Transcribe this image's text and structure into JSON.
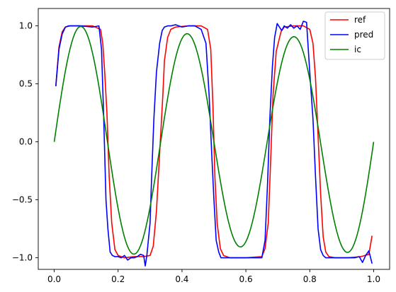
{
  "chart_data": {
    "type": "line",
    "title": "",
    "xlabel": "",
    "ylabel": "",
    "xlim": [
      -0.05,
      1.05
    ],
    "ylim": [
      -1.1,
      1.15
    ],
    "grid": false,
    "legend_placement": "top-right",
    "x_ticks": [
      0.0,
      0.2,
      0.4,
      0.6,
      0.8,
      1.0
    ],
    "x_tick_labels": [
      "0.0",
      "0.2",
      "0.4",
      "0.6",
      "0.8",
      "1.0"
    ],
    "y_ticks": [
      -1.0,
      -0.5,
      0.0,
      0.5,
      1.0
    ],
    "y_tick_labels": [
      "−1.0",
      "−0.5",
      "0.0",
      "0.5",
      "1.0"
    ],
    "series": [
      {
        "name": "ref",
        "color": "#ff0000",
        "x": [
          0.005,
          0.015,
          0.025,
          0.035,
          0.05,
          0.08,
          0.12,
          0.145,
          0.152,
          0.158,
          0.165,
          0.172,
          0.18,
          0.19,
          0.2,
          0.22,
          0.25,
          0.28,
          0.3,
          0.31,
          0.32,
          0.33,
          0.34,
          0.345,
          0.355,
          0.365,
          0.38,
          0.42,
          0.46,
          0.48,
          0.49,
          0.497,
          0.503,
          0.51,
          0.52,
          0.53,
          0.55,
          0.6,
          0.65,
          0.66,
          0.67,
          0.677,
          0.685,
          0.695,
          0.71,
          0.72,
          0.75,
          0.78,
          0.8,
          0.81,
          0.818,
          0.826,
          0.834,
          0.842,
          0.85,
          0.86,
          0.88,
          0.92,
          0.96,
          0.985,
          0.995
        ],
        "y": [
          0.48,
          0.82,
          0.95,
          0.99,
          1.0,
          1.0,
          1.0,
          0.97,
          0.85,
          0.6,
          0.25,
          -0.3,
          -0.7,
          -0.93,
          -0.98,
          -1.0,
          -0.99,
          -0.99,
          -0.98,
          -0.9,
          -0.6,
          -0.1,
          0.4,
          0.7,
          0.9,
          0.97,
          0.99,
          1.0,
          1.0,
          0.97,
          0.8,
          0.3,
          -0.3,
          -0.7,
          -0.92,
          -0.98,
          -1.0,
          -1.0,
          -0.99,
          -0.92,
          -0.7,
          -0.2,
          0.4,
          0.78,
          0.95,
          0.99,
          1.0,
          1.0,
          0.97,
          0.85,
          0.55,
          0.05,
          -0.45,
          -0.82,
          -0.95,
          -0.99,
          -1.0,
          -1.0,
          -0.99,
          -0.97,
          -0.81
        ]
      },
      {
        "name": "pred",
        "color": "#0000ff",
        "x": [
          0.005,
          0.015,
          0.025,
          0.035,
          0.045,
          0.08,
          0.12,
          0.14,
          0.148,
          0.155,
          0.162,
          0.168,
          0.175,
          0.182,
          0.19,
          0.2,
          0.21,
          0.22,
          0.23,
          0.24,
          0.25,
          0.26,
          0.27,
          0.28,
          0.285,
          0.29,
          0.3,
          0.305,
          0.312,
          0.32,
          0.33,
          0.338,
          0.345,
          0.355,
          0.365,
          0.38,
          0.4,
          0.42,
          0.44,
          0.46,
          0.475,
          0.485,
          0.493,
          0.5,
          0.507,
          0.515,
          0.522,
          0.53,
          0.545,
          0.6,
          0.65,
          0.66,
          0.668,
          0.675,
          0.683,
          0.69,
          0.698,
          0.705,
          0.712,
          0.72,
          0.73,
          0.74,
          0.75,
          0.76,
          0.77,
          0.78,
          0.79,
          0.8,
          0.81,
          0.818,
          0.826,
          0.834,
          0.842,
          0.85,
          0.86,
          0.87,
          0.88,
          0.9,
          0.92,
          0.94,
          0.955,
          0.965,
          0.975,
          0.985,
          0.995
        ],
        "y": [
          0.48,
          0.8,
          0.93,
          0.99,
          1.0,
          1.0,
          0.99,
          1.0,
          0.8,
          0.2,
          -0.5,
          -0.75,
          -0.95,
          -0.98,
          -0.99,
          -0.99,
          -1.0,
          -0.98,
          -1.02,
          -1.0,
          -1.0,
          -0.99,
          -0.97,
          -0.98,
          -1.07,
          -0.98,
          -0.7,
          -0.3,
          0.2,
          0.6,
          0.85,
          0.96,
          0.99,
          1.0,
          1.0,
          1.01,
          0.99,
          1.0,
          1.0,
          0.97,
          0.85,
          0.4,
          -0.1,
          -0.5,
          -0.85,
          -0.95,
          -1.0,
          -1.0,
          -1.0,
          -1.0,
          -1.0,
          -0.85,
          -0.35,
          0.2,
          0.65,
          0.9,
          1.02,
          0.99,
          0.96,
          1.0,
          0.98,
          1.01,
          0.98,
          1.0,
          0.97,
          1.04,
          1.03,
          0.6,
          0.2,
          -0.3,
          -0.75,
          -0.93,
          -0.98,
          -1.0,
          -1.0,
          -1.0,
          -1.0,
          -1.0,
          -1.0,
          -1.0,
          -0.99,
          -1.04,
          -0.98,
          -0.94,
          -1.05
        ]
      },
      {
        "name": "ic",
        "color": "#008000",
        "function": "sin"
      }
    ]
  }
}
